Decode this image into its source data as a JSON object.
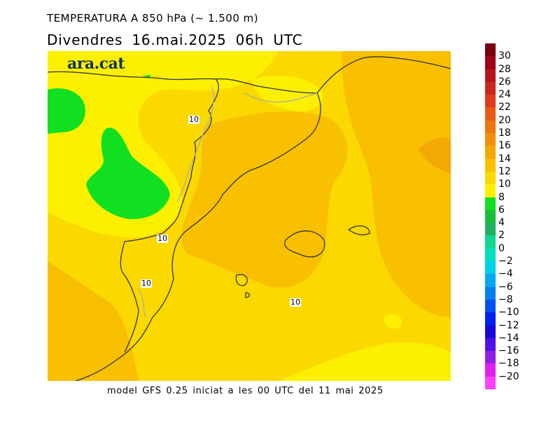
{
  "title_line1": "TEMPERATURA A 850 hPa (~ 1.500 m)",
  "title_line2": "Divendres  16.mai.2025 06h UTC",
  "brand": "ara.cat",
  "isotherm_labels": [
    "10",
    "10",
    "10",
    "10"
  ],
  "footer": "model GFS 0.25 iniciat a les 00 UTC del 11 mai 2025",
  "legend": {
    "ticks": [
      "30",
      "28",
      "26",
      "24",
      "22",
      "20",
      "18",
      "16",
      "14",
      "12",
      "10",
      "8",
      "6",
      "4",
      "2",
      "0",
      "−2",
      "−4",
      "−6",
      "−8",
      "−10",
      "−12",
      "−14",
      "−16",
      "−18",
      "−20"
    ],
    "colors": [
      "#7a0010",
      "#a00018",
      "#b8141c",
      "#c8281e",
      "#e03a1c",
      "#e85a14",
      "#ea780c",
      "#f09008",
      "#f4a806",
      "#f8c000",
      "#fad800",
      "#fcf000",
      "#10e020",
      "#18c038",
      "#20b060",
      "#10d890",
      "#00e0c0",
      "#00d0e8",
      "#00a8f0",
      "#0080f0",
      "#0050f0",
      "#0020f0",
      "#1808d8",
      "#5010e8",
      "#9020e8",
      "#e020f0",
      "#ff40f8"
    ]
  }
}
